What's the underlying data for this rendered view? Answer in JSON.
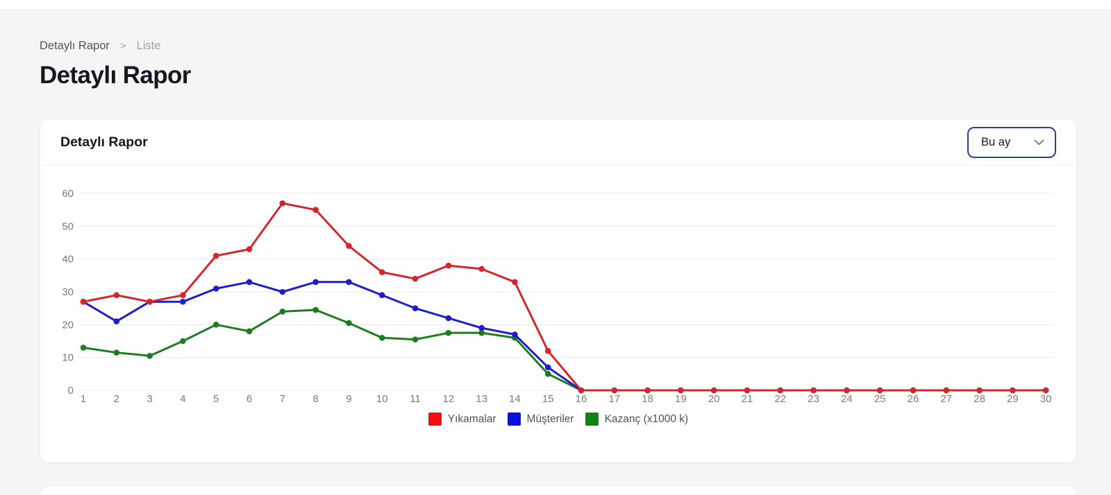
{
  "page": {
    "breadcrumb": {
      "items": [
        "Detaylı Rapor",
        "Liste"
      ],
      "separator": ">"
    },
    "title": "Detaylı Rapor"
  },
  "card": {
    "title": "Detaylı Rapor",
    "period_select": {
      "value": "Bu ay",
      "icon": "chevron-down-icon"
    }
  },
  "colors": {
    "background": "#f5f5f6",
    "select_border": "#2e3d99",
    "grid_line": "#e9eaec",
    "tick_text": "#767a81"
  },
  "chart_data": {
    "type": "line",
    "title": "Detaylı Rapor",
    "x": [
      1,
      2,
      3,
      4,
      5,
      6,
      7,
      8,
      9,
      10,
      11,
      12,
      13,
      14,
      15,
      16,
      17,
      18,
      19,
      20,
      21,
      22,
      23,
      24,
      25,
      26,
      27,
      28,
      29,
      30
    ],
    "series": [
      {
        "name": "Yıkamalar",
        "color": "#d2262b",
        "legend_color": "#ee1111",
        "values": [
          27,
          29,
          27,
          29,
          41,
          43,
          57,
          55,
          44,
          36,
          34,
          38,
          37,
          33,
          12,
          0,
          0,
          0,
          0,
          0,
          0,
          0,
          0,
          0,
          0,
          0,
          0,
          0,
          0,
          0
        ]
      },
      {
        "name": "Müşteriler",
        "color": "#1d1dcb",
        "legend_color": "#0d0de8",
        "values": [
          27,
          21,
          27,
          27,
          31,
          33,
          30,
          33,
          33,
          29,
          25,
          22,
          19,
          17,
          7,
          0,
          0,
          0,
          0,
          0,
          0,
          0,
          0,
          0,
          0,
          0,
          0,
          0,
          0,
          0
        ]
      },
      {
        "name": "Kazanç (x1000 k)",
        "color": "#1e7c20",
        "legend_color": "#0f8312",
        "values": [
          13,
          11.5,
          10.5,
          15,
          20,
          18,
          24,
          24.5,
          20.5,
          16,
          15.5,
          17.5,
          17.5,
          16,
          5,
          0,
          0,
          0,
          0,
          0,
          0,
          0,
          0,
          0,
          0,
          0,
          0,
          0,
          0,
          0
        ]
      }
    ],
    "xlabel": "",
    "ylabel": "",
    "ylim": [
      0,
      60
    ],
    "yticks": [
      0,
      10,
      20,
      30,
      40,
      50,
      60
    ],
    "grid": "horizontal",
    "legend_position": "bottom-center"
  }
}
